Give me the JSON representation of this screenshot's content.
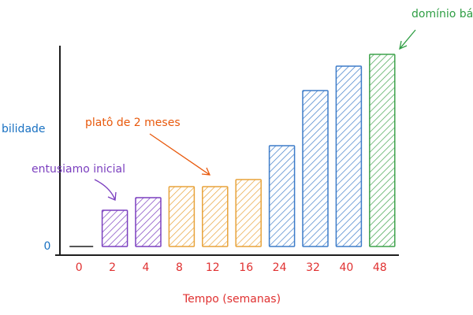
{
  "chart_data": {
    "type": "bar",
    "x_label": "Tempo (semanas)",
    "y_label": "bilidade",
    "categories": [
      "0",
      "2",
      "4",
      "8",
      "12",
      "16",
      "24",
      "32",
      "40",
      "48"
    ],
    "values": [
      0,
      46,
      62,
      76,
      76,
      85,
      128,
      198,
      229,
      244
    ],
    "colors": [
      "#1e1e1e",
      "#7b3fbf",
      "#7b3fbf",
      "#e8a33a",
      "#e8a33a",
      "#e8a33a",
      "#3d7cc9",
      "#3d7cc9",
      "#3d7cc9",
      "#3fa34d"
    ],
    "ylim": [
      0,
      255
    ],
    "yticks": [
      0
    ],
    "annotations": [
      {
        "text": "entusiamo inicial",
        "color": "#7b3fbf"
      },
      {
        "text": "platô de 2 meses",
        "color": "#e8590c"
      },
      {
        "text": "domínio bás",
        "color": "#2f9e44"
      }
    ],
    "axis_label_color": "#e03131",
    "y_label_color": "#1971c2"
  }
}
